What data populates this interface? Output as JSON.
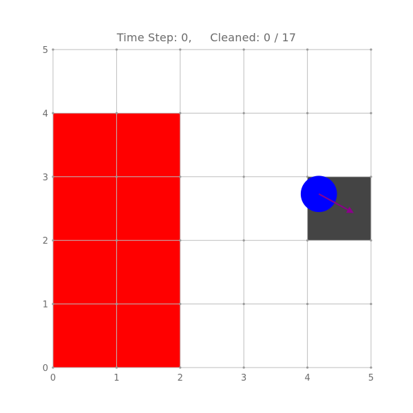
{
  "title": {
    "time_step_label": "Time Step: 0,",
    "cleaned_label": "Cleaned: 0 / 17"
  },
  "grid": {
    "x_ticks": [
      "0",
      "1",
      "2",
      "3",
      "4",
      "5"
    ],
    "y_ticks": [
      "0",
      "1",
      "2",
      "3",
      "4",
      "5"
    ],
    "xlim": [
      0,
      5
    ],
    "ylim": [
      0,
      5
    ],
    "grid_lines": true
  },
  "colors": {
    "obstacle": "#ff0000",
    "cleaned_cell": "#444444",
    "robot": "#0000ff",
    "heading_arrow": "#8b008b",
    "grid_line": "#bdbdbd",
    "tick_text": "#6b6b6b"
  },
  "obstacle": {
    "x_range": [
      0,
      2
    ],
    "y_range": [
      0,
      4
    ]
  },
  "cleaned_cell": {
    "x_range": [
      4,
      5
    ],
    "y_range": [
      2,
      3
    ]
  },
  "robot": {
    "x": 4.18,
    "y": 2.73,
    "radius": 0.3,
    "heading_dx": 0.55,
    "heading_dy": -0.3
  }
}
